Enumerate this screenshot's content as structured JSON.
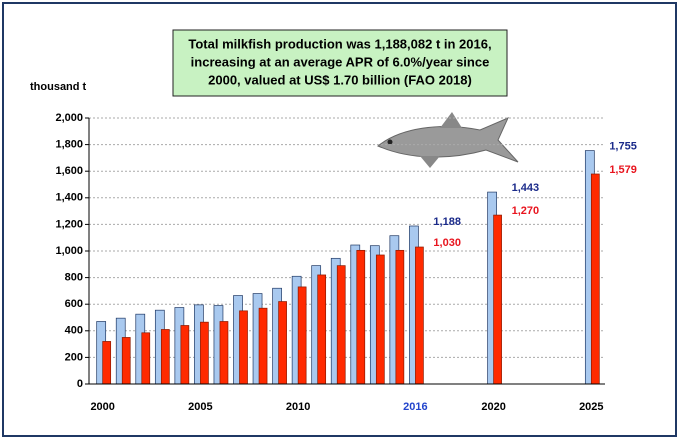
{
  "chart_data": {
    "type": "bar",
    "title": [
      "Total milkfish production was 1,188,082 t in 2016,",
      "increasing at an average APR of 6.0%/year since",
      "2000, valued at US$ 1.70 billion (FAO 2018)"
    ],
    "y_label": "thousand t",
    "x": [
      2000,
      2001,
      2002,
      2003,
      2004,
      2005,
      2006,
      2007,
      2008,
      2009,
      2010,
      2011,
      2012,
      2013,
      2014,
      2015,
      2016,
      2020,
      2025
    ],
    "series": [
      {
        "color": "#a9c9ef",
        "label_color": "#1a2a8a",
        "values": [
          470,
          495,
          525,
          555,
          575,
          595,
          590,
          665,
          680,
          720,
          810,
          890,
          945,
          1045,
          1040,
          1115,
          1188,
          1443,
          1755
        ],
        "value_labels": [
          null,
          null,
          null,
          null,
          null,
          null,
          null,
          null,
          null,
          null,
          null,
          null,
          null,
          null,
          null,
          null,
          "1,188",
          "1,443",
          "1,755"
        ]
      },
      {
        "color": "#ff2a00",
        "label_color": "#e8141e",
        "values": [
          320,
          350,
          385,
          410,
          440,
          465,
          470,
          550,
          570,
          620,
          730,
          820,
          890,
          1005,
          970,
          1005,
          1030,
          1270,
          1579
        ],
        "value_labels": [
          null,
          null,
          null,
          null,
          null,
          null,
          null,
          null,
          null,
          null,
          null,
          null,
          null,
          null,
          null,
          null,
          "1,030",
          "1,270",
          "1,579"
        ]
      }
    ],
    "xlim": [
      1999.3,
      2025.7
    ],
    "xticks": [
      2000,
      2005,
      2010,
      2016,
      2020,
      2025
    ],
    "highlight_xtick": 2016,
    "highlight_color": "#2244cc",
    "ylim": [
      0,
      2000
    ],
    "yticks": [
      0,
      200,
      400,
      600,
      800,
      {
        "value": 1000,
        "label": "1,000"
      },
      {
        "value": 1200,
        "label": "1,200"
      },
      {
        "value": 1400,
        "label": "1,400"
      },
      {
        "value": 1600,
        "label": "1,600"
      },
      {
        "value": 1800,
        "label": "1,800"
      },
      {
        "value": 2000,
        "label": "2,000"
      }
    ],
    "grid": true
  }
}
